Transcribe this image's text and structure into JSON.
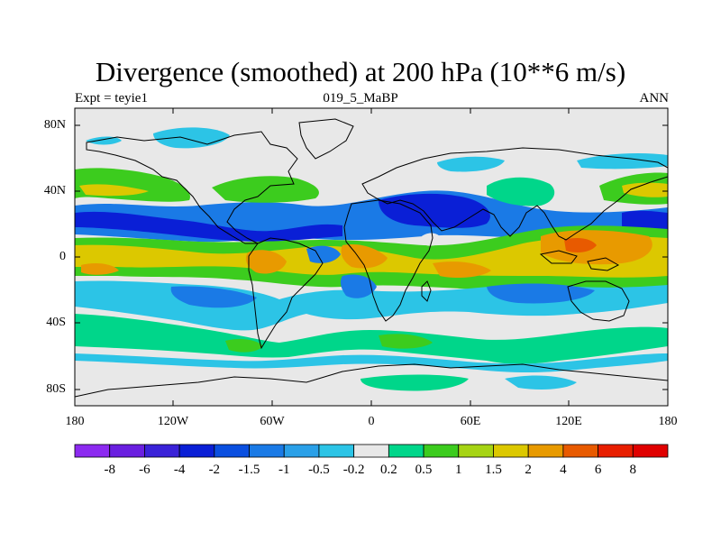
{
  "title": "Divergence (smoothed) at 200 hPa (10**6 m/s)",
  "subtitle": {
    "left": "Expt = teyie1",
    "center": "019_5_MaBP",
    "right": "ANN"
  },
  "y_ticks": [
    "80N",
    "40N",
    "0",
    "40S",
    "80S"
  ],
  "x_ticks": [
    "180",
    "120W",
    "60W",
    "0",
    "60E",
    "120E",
    "180"
  ],
  "colorbar": {
    "labels": [
      "-8",
      "-6",
      "-4",
      "-2",
      "-1.5",
      "-1",
      "-0.5",
      "-0.2",
      "0.2",
      "0.5",
      "1",
      "1.5",
      "2",
      "4",
      "6",
      "8"
    ],
    "colors": [
      "#8c2af0",
      "#6a1fe0",
      "#3a22d8",
      "#0a1fd6",
      "#0a4fe0",
      "#1a7ae6",
      "#2aa0e8",
      "#2cc4e6",
      "#e8e8e8",
      "#00d68a",
      "#3ccc1e",
      "#a6d414",
      "#dcc800",
      "#e89a00",
      "#e85a00",
      "#e81e00",
      "#e00000"
    ]
  },
  "field_colors": {
    "neutral": "#e8e8e8",
    "weak_neg": "#2cc4e6",
    "mid_neg": "#1a7ae6",
    "strong_neg": "#0a1fd6",
    "weak_pos": "#00d68a",
    "mid_pos": "#3ccc1e",
    "strong_pos": "#dcc800",
    "very_pos": "#e89a00",
    "max_pos": "#e85a00"
  }
}
